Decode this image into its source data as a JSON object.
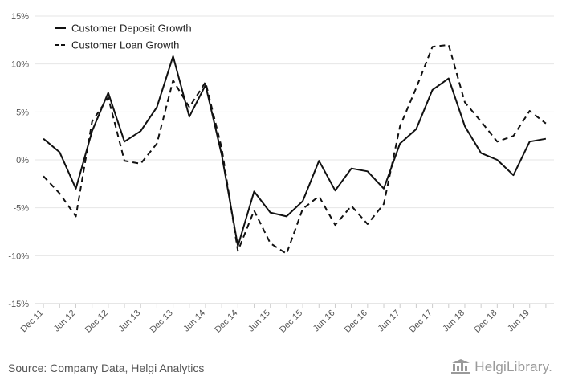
{
  "chart_data": {
    "type": "line",
    "x": [
      "Dec 11",
      "Mar 12",
      "Jun 12",
      "Sep 12",
      "Dec 12",
      "Mar 13",
      "Jun 13",
      "Sep 13",
      "Dec 13",
      "Mar 14",
      "Jun 14",
      "Sep 14",
      "Dec 14",
      "Mar 15",
      "Jun 15",
      "Sep 15",
      "Dec 15",
      "Mar 16",
      "Jun 16",
      "Sep 16",
      "Dec 16",
      "Mar 17",
      "Jun 17",
      "Sep 17",
      "Dec 17",
      "Mar 18",
      "Jun 18",
      "Sep 18",
      "Dec 18",
      "Mar 19",
      "Jun 19",
      "Sep 19"
    ],
    "x_tick_labels": [
      "Dec 11",
      "Jun 12",
      "Dec 12",
      "Jun 13",
      "Dec 13",
      "Jun 14",
      "Dec 14",
      "Jun 15",
      "Dec 15",
      "Jun 16",
      "Dec 16",
      "Jun 17",
      "Dec 17",
      "Jun 18",
      "Dec 18",
      "Jun 19"
    ],
    "y_tick_labels": [
      "15%",
      "10%",
      "5%",
      "0%",
      "-5%",
      "-10%",
      "-15%"
    ],
    "ylim": [
      -15,
      15
    ],
    "y_ticks": [
      15,
      10,
      5,
      0,
      -5,
      -10,
      -15
    ],
    "grid": "horizontal",
    "legend_position": "top-left",
    "series": [
      {
        "name": "Customer Deposit Growth",
        "style": "solid",
        "color": "#111111",
        "values": [
          2.2,
          0.8,
          -3.0,
          3.0,
          7.0,
          1.9,
          3.0,
          5.5,
          10.8,
          4.5,
          7.8,
          0.5,
          -9.0,
          -3.3,
          -5.5,
          -5.9,
          -4.3,
          -0.1,
          -3.2,
          -0.9,
          -1.2,
          -3.0,
          1.7,
          3.2,
          7.3,
          8.5,
          3.5,
          0.7,
          0.0,
          -1.6,
          1.9,
          2.2
        ]
      },
      {
        "name": "Customer Loan Growth",
        "style": "dashed",
        "color": "#111111",
        "values": [
          -1.7,
          -3.5,
          -5.9,
          4.0,
          6.5,
          -0.1,
          -0.4,
          1.7,
          8.3,
          5.5,
          8.1,
          1.2,
          -9.5,
          -5.3,
          -8.7,
          -9.8,
          -5.1,
          -3.8,
          -6.8,
          -4.8,
          -6.7,
          -4.6,
          3.5,
          7.5,
          11.8,
          12.0,
          6.0,
          4.0,
          1.9,
          2.5,
          5.1,
          3.8
        ]
      }
    ]
  },
  "footer": {
    "source": "Source: Company Data, Helgi Analytics",
    "brand": "HelgiLibrary."
  },
  "colors": {
    "grid": "#e6e6e6",
    "axis": "#cccccc",
    "text": "#555555",
    "brand": "#9a9a9a"
  }
}
